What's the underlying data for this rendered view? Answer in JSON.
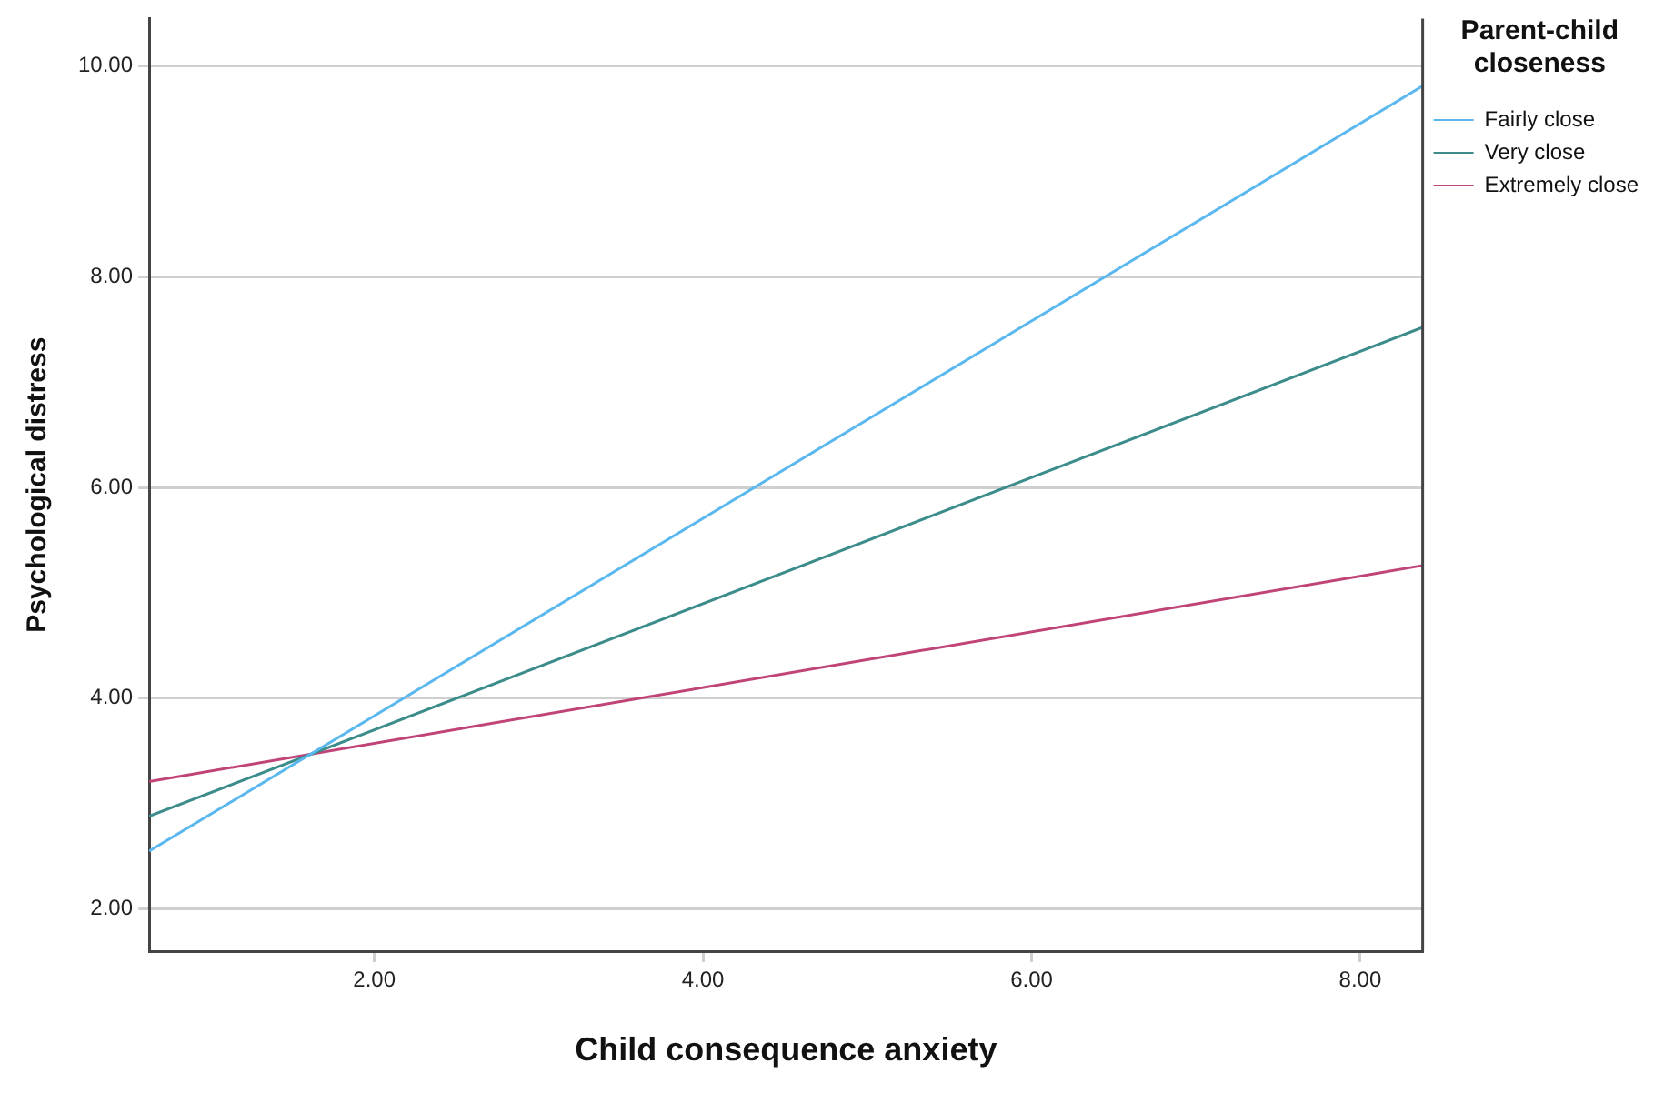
{
  "chart_data": {
    "type": "line",
    "xlabel": "Child consequence anxiety",
    "ylabel": "Psychological distress",
    "legend_title": "Parent-child closeness",
    "legend": "top right",
    "grid": "y",
    "marker": "none",
    "line_style": "solid",
    "xlim": [
      0.63,
      8.38
    ],
    "xticks": [
      {
        "value": 2,
        "label": "2.00"
      },
      {
        "value": 4,
        "label": "4.00"
      },
      {
        "value": 6,
        "label": "6.00"
      },
      {
        "value": 8,
        "label": "8.00"
      }
    ],
    "ylim": [
      1.6,
      10.45
    ],
    "yticks": [
      {
        "value": 2,
        "label": "2.00"
      },
      {
        "value": 4,
        "label": "4.00"
      },
      {
        "value": 6,
        "label": "6.00"
      },
      {
        "value": 8,
        "label": "8.00"
      },
      {
        "value": 10,
        "label": "10.00"
      }
    ],
    "x": [
      0.63,
      8.38
    ],
    "series": [
      {
        "name": "Fairly close",
        "color": "#5ab8ef",
        "values": [
          2.55,
          9.81
        ]
      },
      {
        "name": "Very close",
        "color": "#3b8c8a",
        "values": [
          2.88,
          7.52
        ]
      },
      {
        "name": "Extremely close",
        "color": "#c04478",
        "values": [
          3.21,
          5.26
        ]
      }
    ]
  }
}
